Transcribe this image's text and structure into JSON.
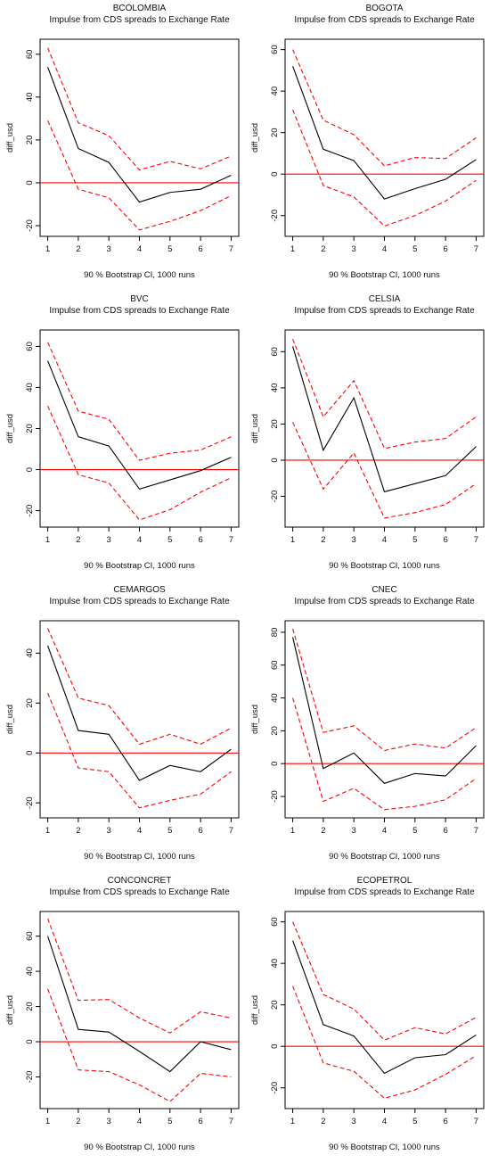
{
  "page": {
    "subtitle": "Impulse from CDS spreads to Exchange Rate",
    "xlabel": "90 % Bootstrap CI,  1000 runs",
    "ylabel": "diff_usd"
  },
  "colors": {
    "irf": "#000000",
    "ci": "#ff0000",
    "zero": "#ff0000"
  },
  "chart_data": [
    {
      "type": "line",
      "title": "BCOLOMBIA",
      "subtitle": "Impulse from CDS spreads to Exchange Rate",
      "xlabel": "90 % Bootstrap CI,  1000 runs",
      "ylabel": "diff_usd",
      "x": [
        1,
        2,
        3,
        4,
        5,
        6,
        7
      ],
      "xlim": [
        0.75,
        7.25
      ],
      "ylim": [
        -25,
        67
      ],
      "yticks": [
        -20,
        0,
        20,
        40,
        60
      ],
      "series": [
        {
          "role": "irf",
          "values": [
            54,
            16,
            9.5,
            -9,
            -4.5,
            -3,
            3.5
          ]
        },
        {
          "role": "upper",
          "values": [
            63,
            28,
            22,
            6,
            10,
            6.5,
            12.5
          ]
        },
        {
          "role": "lower",
          "values": [
            29,
            -3,
            -7,
            -22,
            -18,
            -13,
            -6
          ]
        }
      ],
      "zero_line": 0
    },
    {
      "type": "line",
      "title": "BOGOTA",
      "subtitle": "Impulse from CDS spreads to Exchange Rate",
      "xlabel": "90 % Bootstrap CI,  1000 runs",
      "ylabel": "diff_usd",
      "x": [
        1,
        2,
        3,
        4,
        5,
        6,
        7
      ],
      "xlim": [
        0.75,
        7.25
      ],
      "ylim": [
        -30,
        65
      ],
      "yticks": [
        -20,
        0,
        20,
        40,
        60
      ],
      "series": [
        {
          "role": "irf",
          "values": [
            52,
            12,
            6.5,
            -12,
            -7,
            -2.5,
            7
          ]
        },
        {
          "role": "upper",
          "values": [
            60,
            26,
            19,
            4,
            8,
            7.5,
            17.5
          ]
        },
        {
          "role": "lower",
          "values": [
            31,
            -5.5,
            -11,
            -25,
            -20,
            -13,
            -3
          ]
        }
      ],
      "zero_line": 0
    },
    {
      "type": "line",
      "title": "BVC",
      "subtitle": "Impulse from CDS spreads to Exchange Rate",
      "xlabel": "90 % Bootstrap CI,  1000 runs",
      "ylabel": "diff_usd",
      "x": [
        1,
        2,
        3,
        4,
        5,
        6,
        7
      ],
      "xlim": [
        0.75,
        7.25
      ],
      "ylim": [
        -28,
        68
      ],
      "yticks": [
        -20,
        0,
        20,
        40,
        60
      ],
      "series": [
        {
          "role": "irf",
          "values": [
            53,
            16,
            11.5,
            -9.5,
            -5,
            -0.5,
            6
          ]
        },
        {
          "role": "upper",
          "values": [
            62,
            28.5,
            24.5,
            4.5,
            8,
            9.5,
            16
          ]
        },
        {
          "role": "lower",
          "values": [
            31,
            -2.5,
            -6.5,
            -24.5,
            -19.5,
            -11,
            -4
          ]
        }
      ],
      "zero_line": 0
    },
    {
      "type": "line",
      "title": "CELSIA",
      "subtitle": "Impulse from CDS spreads to Exchange Rate",
      "xlabel": "90 % Bootstrap CI,  1000 runs",
      "ylabel": "diff_usd",
      "x": [
        1,
        2,
        3,
        4,
        5,
        6,
        7
      ],
      "xlim": [
        0.75,
        7.25
      ],
      "ylim": [
        -37,
        72
      ],
      "yticks": [
        -20,
        0,
        20,
        40,
        60
      ],
      "series": [
        {
          "role": "irf",
          "values": [
            63,
            5.5,
            34.5,
            -17.5,
            -13,
            -8.5,
            7.5
          ]
        },
        {
          "role": "upper",
          "values": [
            67,
            24,
            44,
            6.5,
            10,
            12,
            24
          ]
        },
        {
          "role": "lower",
          "values": [
            21,
            -16,
            4,
            -32,
            -29,
            -24.5,
            -13
          ]
        }
      ],
      "zero_line": 0
    },
    {
      "type": "line",
      "title": "CEMARGOS",
      "subtitle": "Impulse from CDS spreads to Exchange Rate",
      "xlabel": "90 % Bootstrap CI,  1000 runs",
      "ylabel": "diff_usd",
      "x": [
        1,
        2,
        3,
        4,
        5,
        6,
        7
      ],
      "xlim": [
        0.75,
        7.25
      ],
      "ylim": [
        -26,
        53
      ],
      "yticks": [
        -20,
        0,
        20,
        40
      ],
      "series": [
        {
          "role": "irf",
          "values": [
            43,
            9,
            7.5,
            -11,
            -5,
            -7.5,
            1.5
          ]
        },
        {
          "role": "upper",
          "values": [
            50,
            22,
            19,
            3.5,
            7.5,
            3.5,
            10
          ]
        },
        {
          "role": "lower",
          "values": [
            24,
            -6,
            -7.5,
            -22,
            -19,
            -16.5,
            -7.5
          ]
        }
      ],
      "zero_line": 0
    },
    {
      "type": "line",
      "title": "CNEC",
      "subtitle": "Impulse from CDS spreads to Exchange Rate",
      "xlabel": "90 % Bootstrap CI,  1000 runs",
      "ylabel": "diff_usd",
      "x": [
        1,
        2,
        3,
        4,
        5,
        6,
        7
      ],
      "xlim": [
        0.75,
        7.25
      ],
      "ylim": [
        -33,
        87
      ],
      "yticks": [
        -20,
        0,
        20,
        40,
        60,
        80
      ],
      "series": [
        {
          "role": "irf",
          "values": [
            77,
            -3,
            6.5,
            -12,
            -6,
            -7.5,
            11
          ]
        },
        {
          "role": "upper",
          "values": [
            82,
            19,
            23,
            8,
            12,
            9.5,
            22
          ]
        },
        {
          "role": "lower",
          "values": [
            40,
            -23,
            -15,
            -28,
            -26,
            -22,
            -9
          ]
        }
      ],
      "zero_line": 0
    },
    {
      "type": "line",
      "title": "CONCONCRET",
      "subtitle": "Impulse from CDS spreads to Exchange Rate",
      "xlabel": "90 % Bootstrap CI,  1000 runs",
      "ylabel": "diff_usd",
      "x": [
        1,
        2,
        3,
        4,
        5,
        6,
        7
      ],
      "xlim": [
        0.75,
        7.25
      ],
      "ylim": [
        -38,
        74
      ],
      "yticks": [
        -20,
        0,
        20,
        40,
        60
      ],
      "series": [
        {
          "role": "irf",
          "values": [
            60,
            7,
            5.5,
            -5.5,
            -17,
            0,
            -4.5
          ]
        },
        {
          "role": "upper",
          "values": [
            70,
            23.5,
            24,
            13.5,
            5,
            17,
            13.5
          ]
        },
        {
          "role": "lower",
          "values": [
            30,
            -16,
            -17,
            -24.5,
            -34,
            -18,
            -20
          ]
        }
      ],
      "zero_line": 0
    },
    {
      "type": "line",
      "title": "ECOPETROL",
      "subtitle": "Impulse from CDS spreads to Exchange Rate",
      "xlabel": "90 % Bootstrap CI,  1000 runs",
      "ylabel": "diff_usd",
      "x": [
        1,
        2,
        3,
        4,
        5,
        6,
        7
      ],
      "xlim": [
        0.75,
        7.25
      ],
      "ylim": [
        -30,
        65
      ],
      "yticks": [
        -20,
        0,
        20,
        40,
        60
      ],
      "series": [
        {
          "role": "irf",
          "values": [
            51,
            10.5,
            5,
            -13,
            -5.5,
            -4,
            5.5
          ]
        },
        {
          "role": "upper",
          "values": [
            60,
            25,
            18,
            3,
            9,
            6,
            14
          ]
        },
        {
          "role": "lower",
          "values": [
            29,
            -8,
            -12,
            -25,
            -21,
            -13.5,
            -4.5
          ]
        }
      ],
      "zero_line": 0
    }
  ]
}
